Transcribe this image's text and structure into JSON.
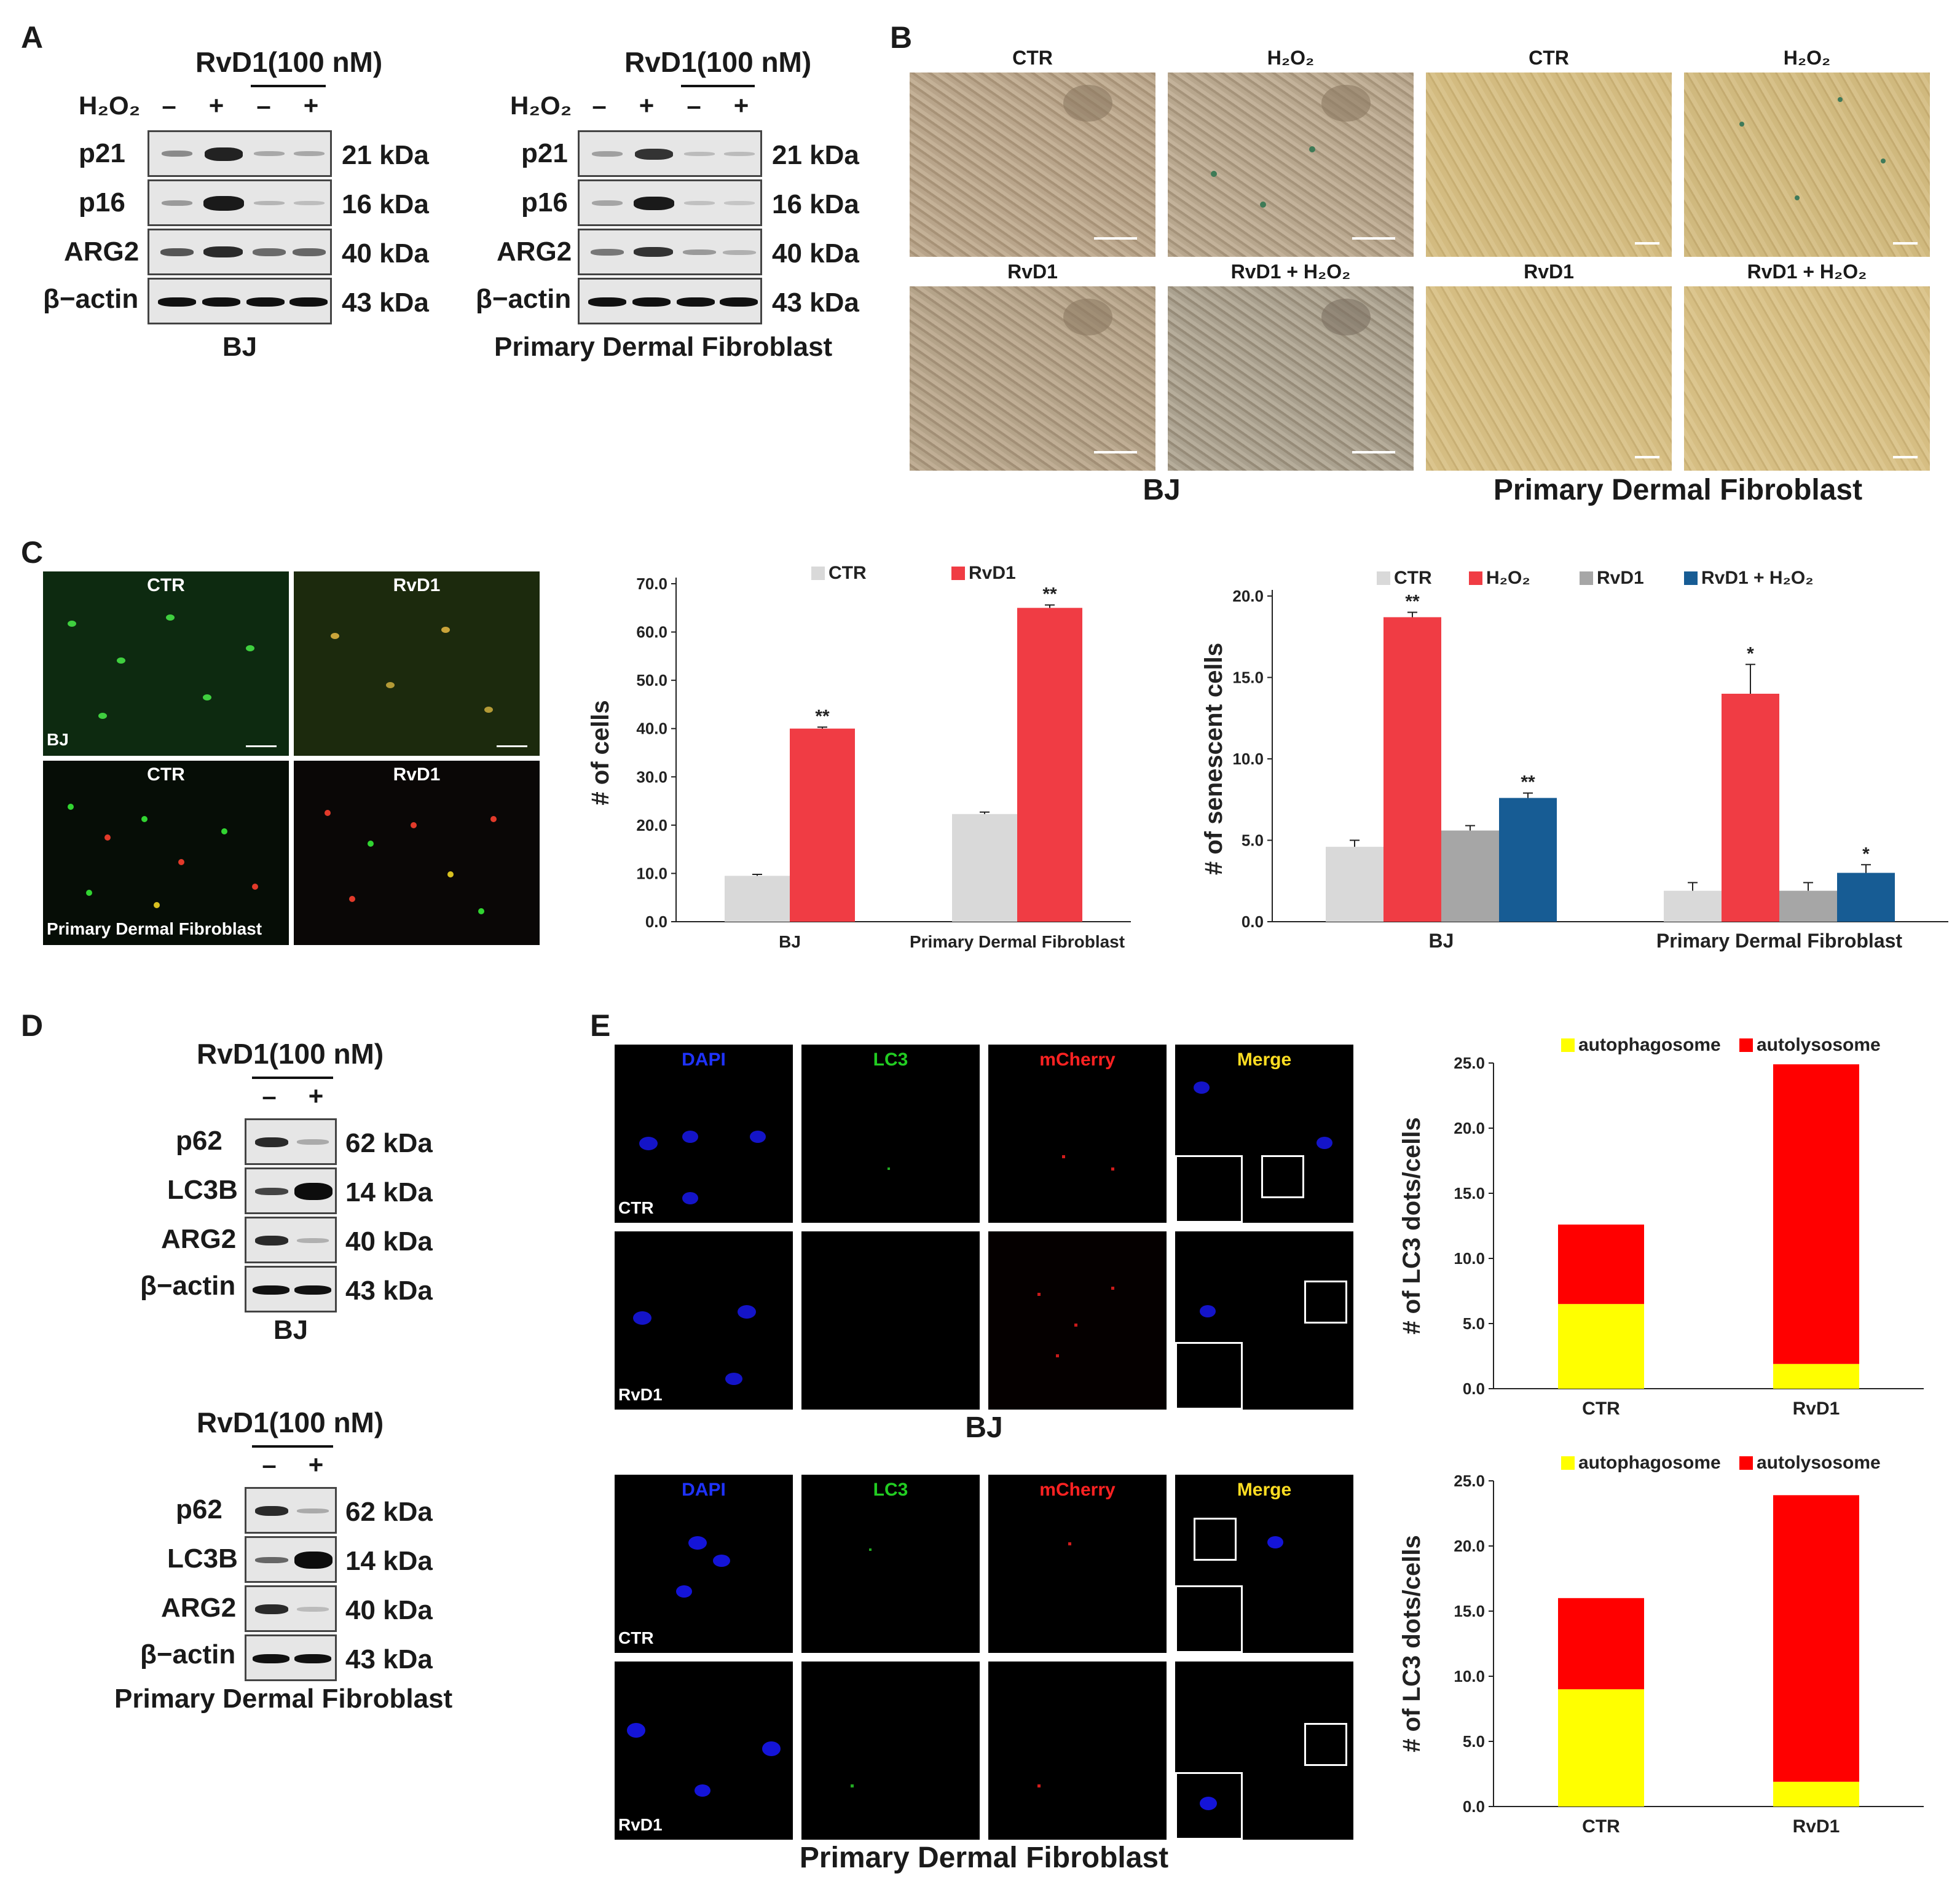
{
  "panel_letters": [
    "A",
    "B",
    "C",
    "D",
    "E"
  ],
  "blotA": {
    "bj": {
      "treatment": "RvD1(100 nM)",
      "h2o2_label": "H₂O₂",
      "lanes": [
        "–",
        "+",
        "–",
        "+"
      ],
      "rows": [
        {
          "name": "p21",
          "size": "21 kDa"
        },
        {
          "name": "p16",
          "size": "16 kDa"
        },
        {
          "name": "ARG2",
          "size": "40 kDa"
        },
        {
          "name": "β−actin",
          "size": "43 kDa"
        }
      ],
      "cell_label": "BJ"
    },
    "pdf": {
      "treatment": "RvD1(100 nM)",
      "h2o2_label": "H₂O₂",
      "lanes": [
        "–",
        "+",
        "–",
        "+"
      ],
      "rows": [
        {
          "name": "p21",
          "size": "21 kDa"
        },
        {
          "name": "p16",
          "size": "16 kDa"
        },
        {
          "name": "ARG2",
          "size": "40 kDa"
        },
        {
          "name": "β−actin",
          "size": "43 kDa"
        }
      ],
      "cell_label": "Primary Dermal Fibroblast"
    }
  },
  "panelB": {
    "labels": [
      "CTR",
      "H₂O₂",
      "CTR",
      "H₂O₂",
      "RvD1",
      "RvD1 + H₂O₂",
      "RvD1",
      "RvD1 + H₂O₂"
    ],
    "bj_label": "BJ",
    "pdf_label": "Primary Dermal Fibroblast"
  },
  "panelC_images": {
    "labels": [
      "CTR",
      "RvD1",
      "CTR",
      "RvD1"
    ],
    "bj": "BJ",
    "pdf": "Primary Dermal Fibroblast"
  },
  "blotD": {
    "bj": {
      "treatment": "RvD1(100 nM)",
      "lanes": [
        "–",
        "+"
      ],
      "rows": [
        {
          "name": "p62",
          "size": "62 kDa"
        },
        {
          "name": "LC3B",
          "size": "14 kDa"
        },
        {
          "name": "ARG2",
          "size": "40 kDa"
        },
        {
          "name": "β−actin",
          "size": "43 kDa"
        }
      ],
      "cell_label": "BJ"
    },
    "pdf": {
      "treatment": "RvD1(100 nM)",
      "lanes": [
        "–",
        "+"
      ],
      "rows": [
        {
          "name": "p62",
          "size": "62 kDa"
        },
        {
          "name": "LC3B",
          "size": "14 kDa"
        },
        {
          "name": "ARG2",
          "size": "40 kDa"
        },
        {
          "name": "β−actin",
          "size": "43 kDa"
        }
      ],
      "cell_label": "Primary Dermal Fibroblast"
    }
  },
  "panelE_images": {
    "channels": [
      "DAPI",
      "LC3",
      "mCherry",
      "Merge"
    ],
    "rows": [
      "CTR",
      "RvD1"
    ],
    "bj_label": "BJ",
    "pdf_label": "Primary Dermal Fibroblast"
  },
  "colors": {
    "ctr": "#d9d9d9",
    "rvd1": "#f03c44",
    "h2o2": "#f03c44",
    "rvd1_gray": "#a6a6a6",
    "rvd1_h2o2": "#175c94",
    "autophagosome": "#ffff00",
    "autolysosome": "#ff0000"
  },
  "chart_data": [
    {
      "type": "bar",
      "id": "C-cells",
      "legend": [
        "CTR",
        "RvD1"
      ],
      "categories": [
        "BJ",
        "Primary Dermal Fibroblast"
      ],
      "series": [
        {
          "name": "CTR",
          "values": [
            9.5,
            22.3
          ],
          "errors": [
            0.3,
            0.4
          ]
        },
        {
          "name": "RvD1",
          "values": [
            40.0,
            65.0
          ],
          "errors": [
            0.3,
            0.6
          ]
        }
      ],
      "significance": [
        [
          "",
          ""
        ],
        [
          "**",
          "**"
        ]
      ],
      "ylabel": "# of cells",
      "ylim": [
        0,
        70
      ],
      "yticks": [
        "0.0",
        "10.0",
        "20.0",
        "30.0",
        "40.0",
        "50.0",
        "60.0",
        "70.0"
      ]
    },
    {
      "type": "bar",
      "id": "C-senescent",
      "legend": [
        "CTR",
        "H₂O₂",
        "RvD1",
        "RvD1 + H₂O₂"
      ],
      "categories": [
        "BJ",
        "Primary Dermal Fibroblast"
      ],
      "series": [
        {
          "name": "CTR",
          "values": [
            4.6,
            1.9
          ],
          "errors": [
            0.4,
            0.5
          ]
        },
        {
          "name": "H₂O₂",
          "values": [
            18.7,
            14.0
          ],
          "errors": [
            0.3,
            1.8
          ]
        },
        {
          "name": "RvD1",
          "values": [
            5.6,
            1.9
          ],
          "errors": [
            0.3,
            0.5
          ]
        },
        {
          "name": "RvD1 + H₂O₂",
          "values": [
            7.6,
            3.0
          ],
          "errors": [
            0.3,
            0.5
          ]
        }
      ],
      "significance": [
        [
          "",
          ""
        ],
        [
          "**",
          "*"
        ],
        [
          "",
          ""
        ],
        [
          "**",
          "*"
        ]
      ],
      "ylabel": "# of senescent cells",
      "ylim": [
        0,
        20
      ],
      "yticks": [
        "0.0",
        "5.0",
        "10.0",
        "15.0",
        "20.0"
      ]
    },
    {
      "type": "bar",
      "stacked": true,
      "id": "E-BJ",
      "legend": [
        "autophagosome",
        "autolysosome"
      ],
      "categories": [
        "CTR",
        "RvD1"
      ],
      "series": [
        {
          "name": "autophagosome",
          "values": [
            6.5,
            1.9
          ]
        },
        {
          "name": "autolysosome",
          "values": [
            6.1,
            23.0
          ]
        }
      ],
      "ylabel": "# of LC3 dots/cells",
      "ylim": [
        0,
        25
      ],
      "yticks": [
        "0.0",
        "5.0",
        "10.0",
        "15.0",
        "20.0",
        "25.0"
      ]
    },
    {
      "type": "bar",
      "stacked": true,
      "id": "E-PDF",
      "legend": [
        "autophagosome",
        "autolysosome"
      ],
      "categories": [
        "CTR",
        "RvD1"
      ],
      "series": [
        {
          "name": "autophagosome",
          "values": [
            9.0,
            1.9
          ]
        },
        {
          "name": "autolysosome",
          "values": [
            7.0,
            22.0
          ]
        }
      ],
      "ylabel": "# of LC3 dots/cells",
      "ylim": [
        0,
        25
      ],
      "yticks": [
        "0.0",
        "5.0",
        "10.0",
        "15.0",
        "20.0",
        "25.0"
      ]
    }
  ]
}
